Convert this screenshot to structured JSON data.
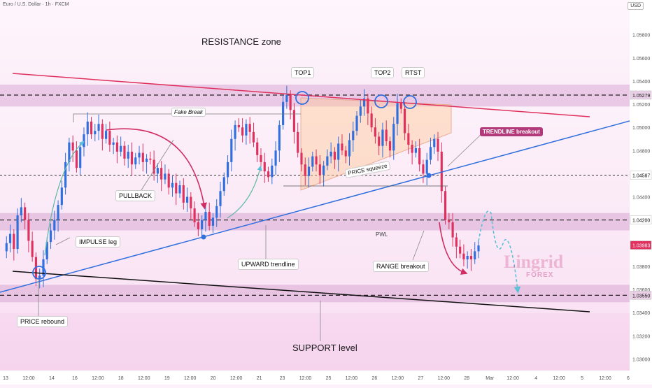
{
  "header": {
    "symbol": "Euro / U.S. Dollar · 1h · FXCM",
    "currency": "USD"
  },
  "watermark": {
    "main": "Lingrid",
    "sub": "FOREX"
  },
  "colors": {
    "up_candle": "#2f6fde",
    "down_candle": "#e0315e",
    "resistance_zone": "#d9a7d3",
    "support_zone": "#d9a7d3",
    "falling_trendline": "#e0315e",
    "rising_trendline": "#2f6fde",
    "support_trendline": "#111111",
    "price_badge_current": "#e0315e",
    "annotation_badge": "#b23a7a"
  },
  "annotations": {
    "resistance_zone": "RESISTANCE zone",
    "support_level": "SUPPORT level",
    "top1": "TOP1",
    "top2": "TOP2",
    "rtst": "RTST",
    "fake_break": "Fake Break",
    "pullback": "PULLBACK",
    "impulse_leg": "IMPULSE leg",
    "upward_trendline": "UPWARD trendline",
    "price_rebound": "PRICE rebound",
    "price_squeeze": "PRICE squeeze",
    "trendline_breakout": "TRENDLINE breakout",
    "range_breakout": "RANGE breakout",
    "pwl": "PWL"
  },
  "chart_data": {
    "type": "candlestick",
    "title": "Euro / U.S. Dollar · 1h · FXCM",
    "y_axis": {
      "unit": "USD",
      "ticks": [
        1.058,
        1.056,
        1.054,
        1.052,
        1.05,
        1.048,
        1.044,
        1.04,
        1.038,
        1.036,
        1.034,
        1.032,
        1.03
      ],
      "ylim": [
        1.029,
        1.061
      ]
    },
    "x_axis": {
      "ticks": [
        "13",
        "12:00",
        "14",
        "16",
        "12:00",
        "18",
        "12:00",
        "19",
        "12:00",
        "20",
        "12:00",
        "21",
        "23",
        "12:00",
        "25",
        "12:00",
        "26",
        "12:00",
        "27",
        "12:00",
        "28",
        "Mar",
        "12:00",
        "4",
        "12:00",
        "5",
        "12:00",
        "6"
      ]
    },
    "price_labels": [
      {
        "value": "1.05279",
        "price": 1.05279,
        "style": "highlight"
      },
      {
        "value": "1.04587",
        "price": 1.04587,
        "style": "plain"
      },
      {
        "value": "1.04200",
        "price": 1.042,
        "style": "plain"
      },
      {
        "value": "1.03983",
        "price": 1.03983,
        "style": "current"
      },
      {
        "value": "1.03550",
        "price": 1.0355,
        "style": "highlight"
      }
    ],
    "levels": [
      {
        "name": "resistance",
        "price": 1.05279
      },
      {
        "name": "pwl",
        "price": 1.042
      },
      {
        "name": "support",
        "price": 1.0355
      },
      {
        "name": "range-low",
        "price": 1.04587
      }
    ],
    "zones": [
      {
        "name": "resistance-zone",
        "from": 1.0518,
        "to": 1.0537
      },
      {
        "name": "pwl-zone",
        "from": 1.0411,
        "to": 1.0426
      },
      {
        "name": "support-zone",
        "from": 1.0349,
        "to": 1.0364
      }
    ],
    "price_path": [
      1.0393,
      1.04,
      1.0408,
      1.0395,
      1.0424,
      1.0431,
      1.042,
      1.0402,
      1.0388,
      1.0369,
      1.0372,
      1.0386,
      1.0401,
      1.0411,
      1.042,
      1.0433,
      1.0448,
      1.047,
      1.0487,
      1.048,
      1.0465,
      1.0483,
      1.0494,
      1.0505,
      1.0494,
      1.0497,
      1.0503,
      1.049,
      1.0497,
      1.0485,
      1.0487,
      1.0479,
      1.0484,
      1.0473,
      1.0479,
      1.0468,
      1.0474,
      1.0478,
      1.047,
      1.0473,
      1.0472,
      1.046,
      1.0465,
      1.0455,
      1.046,
      1.0448,
      1.0452,
      1.0443,
      1.045,
      1.0435,
      1.044,
      1.043,
      1.0418,
      1.0412,
      1.042,
      1.0427,
      1.0415,
      1.0422,
      1.0432,
      1.0445,
      1.0457,
      1.047,
      1.049,
      1.0502,
      1.05,
      1.0493,
      1.0503,
      1.0496,
      1.0487,
      1.0476,
      1.047,
      1.0462,
      1.0457,
      1.0467,
      1.048,
      1.0502,
      1.0522,
      1.0528,
      1.0515,
      1.0496,
      1.0478,
      1.0468,
      1.0458,
      1.0466,
      1.0475,
      1.0468,
      1.0459,
      1.0467,
      1.0475,
      1.0479,
      1.0472,
      1.0486,
      1.048,
      1.0475,
      1.0489,
      1.0497,
      1.051,
      1.0518,
      1.0525,
      1.0512,
      1.05,
      1.0492,
      1.0484,
      1.0498,
      1.0488,
      1.048,
      1.0503,
      1.0521,
      1.0516,
      1.0495,
      1.0485,
      1.0478,
      1.0482,
      1.0468,
      1.046,
      1.0472,
      1.0483,
      1.049,
      1.0479,
      1.0445,
      1.042,
      1.0418,
      1.0405,
      1.0397,
      1.0391,
      1.0386,
      1.0389,
      1.0386,
      1.0393,
      1.0398
    ]
  }
}
